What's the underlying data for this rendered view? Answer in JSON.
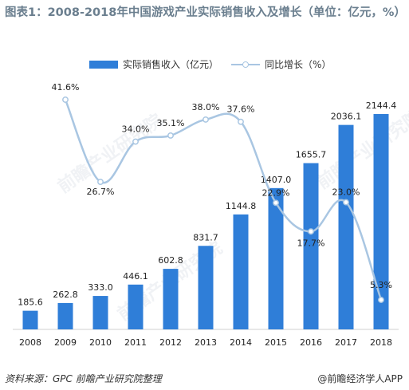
{
  "title": "图表1：2008-2018年中国游戏产业实际销售收入及增长（单位：亿元，%）",
  "legend": {
    "bar": "实际销售收入（亿元）",
    "line": "同比增长（%）"
  },
  "source": "资料来源：GPC  前瞻产业研究院整理",
  "app_credit": "@前瞻经济学人APP",
  "watermark": "前瞻产业研究院",
  "colors": {
    "bar": "#2f7ed8",
    "line": "#a9c6e2"
  },
  "chart_data": {
    "type": "bar",
    "categories": [
      "2008",
      "2009",
      "2010",
      "2011",
      "2012",
      "2013",
      "2014",
      "2015",
      "2016",
      "2017",
      "2018"
    ],
    "series": [
      {
        "name": "实际销售收入（亿元）",
        "type": "bar",
        "values": [
          185.6,
          262.8,
          333.0,
          446.1,
          602.8,
          831.7,
          1144.8,
          1407.0,
          1655.7,
          2036.1,
          2144.4
        ],
        "labels": [
          "185.6",
          "262.8",
          "333.0",
          "446.1",
          "602.8",
          "831.7",
          "1144.8",
          "1407.0",
          "1655.7",
          "2036.1",
          "2144.4"
        ]
      },
      {
        "name": "同比增长（%）",
        "type": "line",
        "values": [
          null,
          41.6,
          26.7,
          34.0,
          35.1,
          38.0,
          37.6,
          22.9,
          17.7,
          23.0,
          5.3
        ],
        "labels": [
          "",
          "41.6%",
          "26.7%",
          "34.0%",
          "35.1%",
          "38.0%",
          "37.6%",
          "22.9%",
          "17.7%",
          "23.0%",
          "5.3%"
        ]
      }
    ],
    "axis": {
      "y_left_hidden": true,
      "y_right_hidden": true
    },
    "grid": false,
    "legend_position": "top-center"
  }
}
